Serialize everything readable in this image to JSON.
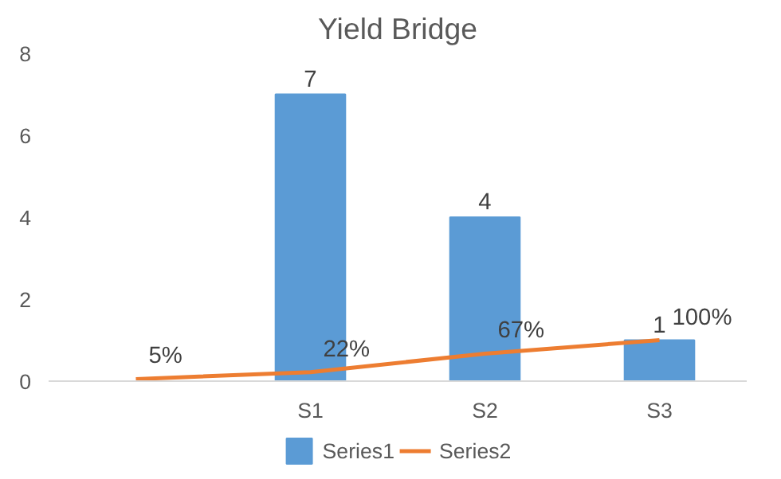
{
  "chart_data": {
    "type": "bar",
    "title": "Yield Bridge",
    "categories": [
      null,
      "S1",
      "S2",
      "S3"
    ],
    "series": [
      {
        "name": "Series1",
        "color": "#5b9bd5",
        "values": [
          null,
          7,
          4,
          1
        ],
        "value_labels": [
          null,
          "7",
          "4",
          "1"
        ]
      },
      {
        "name": "Series2",
        "type": "line",
        "color": "#ed7d31",
        "values": [
          0.05,
          0.22,
          0.67,
          1
        ],
        "value_labels": [
          "5%",
          "22%",
          "67%",
          "100%"
        ]
      }
    ],
    "ylim": [
      0,
      8
    ],
    "yticks": [
      0,
      2,
      4,
      6,
      8
    ],
    "grid": false,
    "legend": "bottom",
    "marker": "none",
    "line_style": "solid"
  }
}
